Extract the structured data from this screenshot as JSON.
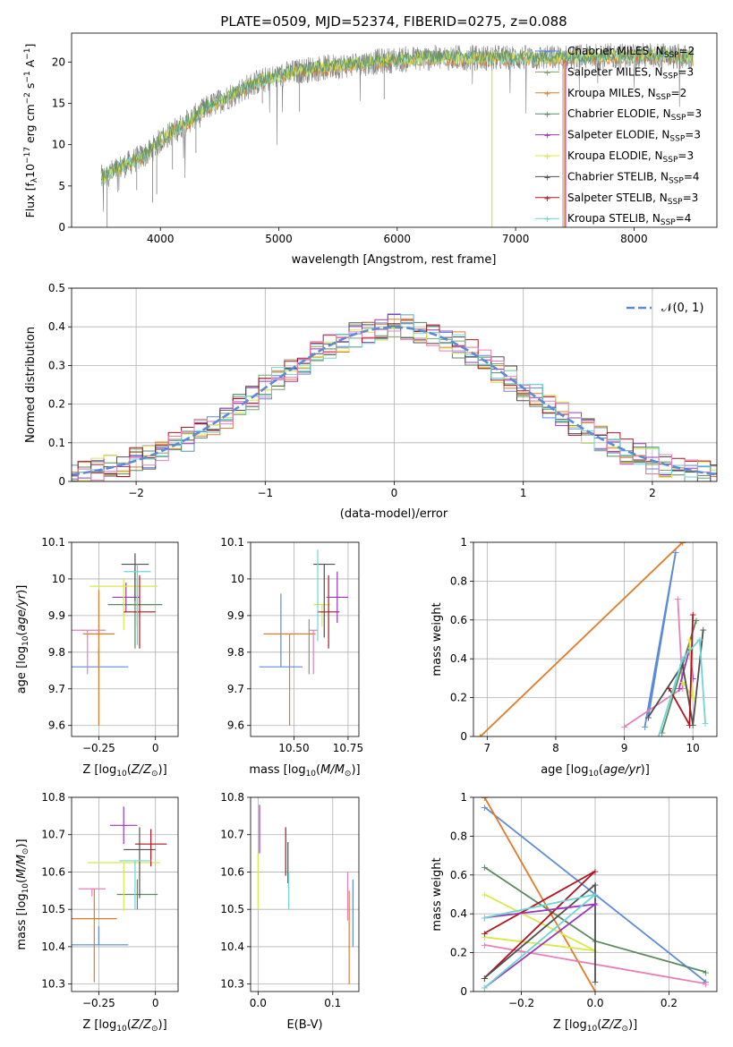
{
  "colors": {
    "cm": "#5b8bd8",
    "sm": "#7fa06f",
    "km": "#e07b28",
    "ce": "#5a8a5e",
    "se": "#9b36b8",
    "ke": "#d8e848",
    "cs": "#505050",
    "ss": "#b0141f",
    "ks": "#6cd6d6",
    "pink": "#e87fb8",
    "gray": "#808080"
  },
  "chart_data": [
    {
      "id": "spectrum",
      "type": "line",
      "title": "PLATE=0509, MJD=52374, FIBERID=0275, z=0.088",
      "xlabel": "wavelength [Angstrom, rest frame]",
      "ylabel_parts": [
        "Flux [f",
        "λ",
        "10",
        "−17",
        " erg cm",
        "−2",
        " s",
        "−1",
        " A",
        "−1",
        "]"
      ],
      "xlim": [
        3250,
        8700
      ],
      "ylim": [
        0,
        23.5
      ],
      "xticks": [
        4000,
        5000,
        6000,
        7000,
        8000
      ],
      "yticks": [
        0,
        5,
        10,
        15,
        20
      ],
      "legend": "top-right",
      "legend_entries": [
        {
          "label": "Chabrier MILES, N",
          "sub": "SSP",
          "tail": "=2",
          "color": "cm"
        },
        {
          "label": "Salpeter MILES, N",
          "sub": "SSP",
          "tail": "=3",
          "color": "sm"
        },
        {
          "label": "Kroupa MILES, N",
          "sub": "SSP",
          "tail": "=2",
          "color": "km"
        },
        {
          "label": "Chabrier ELODIE, N",
          "sub": "SSP",
          "tail": "=3",
          "color": "ce"
        },
        {
          "label": "Salpeter ELODIE, N",
          "sub": "SSP",
          "tail": "=3",
          "color": "se"
        },
        {
          "label": "Kroupa ELODIE, N",
          "sub": "SSP",
          "tail": "=3",
          "color": "ke"
        },
        {
          "label": "Chabrier STELIB, N",
          "sub": "SSP",
          "tail": "=4",
          "color": "cs"
        },
        {
          "label": "Salpeter STELIB, N",
          "sub": "SSP",
          "tail": "=3",
          "color": "ss"
        },
        {
          "label": "Kroupa STELIB, N",
          "sub": "SSP",
          "tail": "=4",
          "color": "ks"
        }
      ],
      "continuum": [
        [
          3500,
          6
        ],
        [
          3700,
          7.5
        ],
        [
          3900,
          9
        ],
        [
          4000,
          10.5
        ],
        [
          4200,
          12.5
        ],
        [
          4400,
          14.5
        ],
        [
          4600,
          16
        ],
        [
          4800,
          17.5
        ],
        [
          5000,
          18.3
        ],
        [
          5200,
          19
        ],
        [
          5500,
          19.5
        ],
        [
          5800,
          20
        ],
        [
          6000,
          20.3
        ],
        [
          6300,
          20.5
        ],
        [
          6600,
          20.5
        ],
        [
          7000,
          20.5
        ],
        [
          7400,
          20.5
        ],
        [
          7800,
          20.7
        ],
        [
          8200,
          20.8
        ],
        [
          8500,
          20.5
        ]
      ],
      "absorption": [
        [
          3550,
          0
        ],
        [
          3800,
          4.5
        ],
        [
          3934,
          3
        ],
        [
          3969,
          4
        ],
        [
          4102,
          7
        ],
        [
          4300,
          9
        ],
        [
          4861,
          15
        ],
        [
          5175,
          14
        ],
        [
          5890,
          15.5
        ],
        [
          6800,
          0
        ],
        [
          6563,
          19
        ],
        [
          7400,
          0
        ]
      ],
      "spectrum_range": [
        3500,
        8500
      ]
    },
    {
      "id": "residuals",
      "type": "step",
      "xlabel": "(data-model)/error",
      "ylabel": "Normed distribution",
      "xlim": [
        -2.5,
        2.5
      ],
      "ylim": [
        0,
        0.5
      ],
      "xticks": [
        -2,
        -1,
        0,
        1,
        2
      ],
      "yticks": [
        0.0,
        0.1,
        0.2,
        0.3,
        0.4,
        0.5
      ],
      "grid": true,
      "legend": "top-right",
      "legend_label": "𝒩(0, 1)",
      "legend_color": "cm",
      "bin_width": 0.1
    },
    {
      "id": "age_vs_Z",
      "type": "errorbar",
      "xlabel_parts": [
        "Z [log",
        "10",
        "(",
        "Z/Z",
        "⊙",
        ")]"
      ],
      "ylabel_parts": [
        "age  [log",
        "10",
        "(",
        "age/yr",
        ")]"
      ],
      "xlim": [
        -0.37,
        0.1
      ],
      "ylim": [
        9.57,
        10.1
      ],
      "xticks": [
        -0.25,
        0.0
      ],
      "yticks": [
        9.6,
        9.7,
        9.8,
        9.9,
        10.0,
        10.1
      ],
      "grid": true,
      "points": [
        {
          "x": -0.25,
          "xerr": 0.13,
          "y": 9.76,
          "yerr_lo": 0.0,
          "yerr_hi": 0.05,
          "color": "cm"
        },
        {
          "x": -0.08,
          "xerr": 0.07,
          "y": 9.93,
          "yerr_lo": 0.06,
          "yerr_hi": 0.07,
          "color": "sm"
        },
        {
          "x": -0.25,
          "xerr": 0.07,
          "y": 9.85,
          "yerr_lo": 0.25,
          "yerr_hi": 0.12,
          "color": "km"
        },
        {
          "x": -0.09,
          "xerr": 0.12,
          "y": 9.93,
          "yerr_lo": 0.12,
          "yerr_hi": 0.1,
          "color": "ce"
        },
        {
          "x": -0.13,
          "xerr": 0.06,
          "y": 9.95,
          "yerr_lo": 0.04,
          "yerr_hi": 0.04,
          "color": "se"
        },
        {
          "x": -0.14,
          "xerr": 0.15,
          "y": 9.98,
          "yerr_lo": 0.12,
          "yerr_hi": 0.02,
          "color": "ke"
        },
        {
          "x": -0.09,
          "xerr": 0.06,
          "y": 10.04,
          "yerr_lo": 0.1,
          "yerr_hi": 0.03,
          "color": "cs"
        },
        {
          "x": -0.07,
          "xerr": 0.07,
          "y": 9.91,
          "yerr_lo": 0.1,
          "yerr_hi": 0.1,
          "color": "ss"
        },
        {
          "x": -0.08,
          "xerr": 0.06,
          "y": 10.02,
          "yerr_lo": 0.2,
          "yerr_hi": 0.02,
          "color": "ks"
        },
        {
          "x": -0.3,
          "xerr": 0.08,
          "y": 9.86,
          "yerr_lo": 0.12,
          "yerr_hi": 0.0,
          "color": "pink"
        }
      ]
    },
    {
      "id": "age_vs_mass",
      "type": "errorbar",
      "xlabel_parts": [
        "mass [log",
        "10",
        "(",
        "M/M",
        "⊙",
        ")]"
      ],
      "xlim": [
        10.3,
        10.8
      ],
      "ylim": [
        9.57,
        10.1
      ],
      "xticks": [
        10.5,
        10.75
      ],
      "xticklabels": [
        "10.50",
        "10.75"
      ],
      "yticks": [
        9.6,
        9.7,
        9.8,
        9.9,
        10.0,
        10.1
      ],
      "grid": true,
      "points": [
        {
          "x": 10.44,
          "xerr": 0.1,
          "y": 9.76,
          "yerr_lo": 0.0,
          "yerr_hi": 0.2,
          "color": "cm"
        },
        {
          "x": 10.48,
          "xerr": 0.12,
          "y": 9.85,
          "yerr_lo": 0.25,
          "yerr_hi": 0.0,
          "color": "km"
        },
        {
          "x": 10.59,
          "xerr": 0.02,
          "y": 9.86,
          "yerr_lo": 0.12,
          "yerr_hi": 0.0,
          "color": "pink"
        },
        {
          "x": 10.63,
          "xerr": 0.04,
          "y": 9.93,
          "yerr_lo": 0.06,
          "yerr_hi": 0.0,
          "color": "ke"
        },
        {
          "x": 10.64,
          "xerr": 0.05,
          "y": 10.04,
          "yerr_lo": 0.2,
          "yerr_hi": 0.0,
          "color": "cs"
        },
        {
          "x": 10.66,
          "xerr": 0.05,
          "y": 9.91,
          "yerr_lo": 0.1,
          "yerr_hi": 0.1,
          "color": "ss"
        },
        {
          "x": 10.7,
          "xerr": 0.05,
          "y": 9.95,
          "yerr_lo": 0.07,
          "yerr_hi": 0.07,
          "color": "se"
        },
        {
          "x": 10.61,
          "xerr": 0.0,
          "y": 9.98,
          "yerr_lo": 0.15,
          "yerr_hi": 0.1,
          "color": "ks"
        },
        {
          "x": 10.57,
          "xerr": 0.0,
          "y": 9.84,
          "yerr_lo": 0.1,
          "yerr_hi": 0.05,
          "color": "sm"
        }
      ]
    },
    {
      "id": "weight_vs_age",
      "type": "line",
      "xlabel_parts": [
        "age  [log",
        "10",
        "(",
        "age/yr",
        ")]"
      ],
      "ylabel": "mass weight",
      "xlim": [
        6.8,
        10.35
      ],
      "ylim": [
        0,
        1.0
      ],
      "xticks": [
        7,
        8,
        9,
        10
      ],
      "yticks": [
        0.0,
        0.2,
        0.4,
        0.6,
        0.8,
        1.0
      ],
      "grid": true,
      "series": [
        {
          "color": "km",
          "x": [
            6.9,
            9.85
          ],
          "y": [
            0.0,
            1.0
          ]
        },
        {
          "color": "cm",
          "x": [
            9.3,
            9.75,
            9.35
          ],
          "y": [
            0.05,
            0.95,
            0.1
          ]
        },
        {
          "color": "pink",
          "x": [
            9.0,
            9.85,
            9.78
          ],
          "y": [
            0.05,
            0.25,
            0.71
          ]
        },
        {
          "color": "ce",
          "x": [
            9.55,
            9.85,
            10.05
          ],
          "y": [
            0.02,
            0.37,
            0.6
          ]
        },
        {
          "color": "se",
          "x": [
            9.8,
            9.95,
            10.0
          ],
          "y": [
            0.25,
            0.45,
            0.3
          ]
        },
        {
          "color": "ke",
          "x": [
            9.95,
            10.0,
            9.85
          ],
          "y": [
            0.5,
            0.2,
            0.28
          ]
        },
        {
          "color": "cs",
          "x": [
            9.35,
            9.85,
            10.0,
            10.15
          ],
          "y": [
            0.1,
            0.37,
            0.06,
            0.55
          ]
        },
        {
          "color": "ss",
          "x": [
            9.65,
            9.95,
            10.0
          ],
          "y": [
            0.25,
            0.06,
            0.63
          ]
        },
        {
          "color": "ks",
          "x": [
            9.5,
            9.85,
            10.1,
            10.18
          ],
          "y": [
            0.0,
            0.4,
            0.5,
            0.07
          ]
        }
      ]
    },
    {
      "id": "mass_vs_Z",
      "type": "errorbar",
      "xlabel_parts": [
        "Z [log",
        "10",
        "(",
        "Z/Z",
        "⊙",
        ")]"
      ],
      "ylabel_parts": [
        "mass [log",
        "10",
        "(",
        "M/M",
        "⊙",
        ")]"
      ],
      "xlim": [
        -0.37,
        0.1
      ],
      "ylim": [
        10.28,
        10.8
      ],
      "xticks": [
        -0.25,
        0.0
      ],
      "yticks": [
        10.3,
        10.4,
        10.5,
        10.6,
        10.7,
        10.8
      ],
      "grid": true,
      "points": [
        {
          "x": -0.25,
          "xerr": 0.13,
          "y": 10.405,
          "yerr_lo": 0.0,
          "yerr_hi": 0.05,
          "color": "cm"
        },
        {
          "x": -0.27,
          "xerr": 0.1,
          "y": 10.475,
          "yerr_lo": 0.17,
          "yerr_hi": 0.08,
          "color": "km"
        },
        {
          "x": -0.08,
          "xerr": 0.09,
          "y": 10.54,
          "yerr_lo": 0.04,
          "yerr_hi": 0.04,
          "color": "ce"
        },
        {
          "x": -0.28,
          "xerr": 0.06,
          "y": 10.555,
          "yerr_lo": 0.02,
          "yerr_hi": 0.0,
          "color": "pink"
        },
        {
          "x": -0.14,
          "xerr": 0.16,
          "y": 10.625,
          "yerr_lo": 0.13,
          "yerr_hi": 0.0,
          "color": "ke"
        },
        {
          "x": -0.07,
          "xerr": 0.07,
          "y": 10.66,
          "yerr_lo": 0.13,
          "yerr_hi": 0.06,
          "color": "cs"
        },
        {
          "x": -0.02,
          "xerr": 0.07,
          "y": 10.675,
          "yerr_lo": 0.06,
          "yerr_hi": 0.04,
          "color": "ss"
        },
        {
          "x": -0.14,
          "xerr": 0.06,
          "y": 10.725,
          "yerr_lo": 0.05,
          "yerr_hi": 0.05,
          "color": "se"
        },
        {
          "x": -0.09,
          "xerr": 0.07,
          "y": 10.63,
          "yerr_lo": 0.13,
          "yerr_hi": 0.0,
          "color": "ks"
        }
      ]
    },
    {
      "id": "mass_vs_ebv",
      "type": "errorbar",
      "xlabel": "E(B-V)",
      "xlim": [
        -0.01,
        0.135
      ],
      "ylim": [
        10.28,
        10.8
      ],
      "xticks": [
        0.0,
        0.1
      ],
      "xticklabels": [
        "0.0",
        "0.1"
      ],
      "yticks": [
        10.3,
        10.4,
        10.5,
        10.6,
        10.7,
        10.8
      ],
      "grid": true,
      "points": [
        {
          "x": 0.0,
          "xerr": 0.0,
          "y": 10.6,
          "yerr_lo": 0.1,
          "yerr_hi": 0.05,
          "color": "ke"
        },
        {
          "x": 0.002,
          "xerr": 0.0,
          "y": 10.72,
          "yerr_lo": 0.07,
          "yerr_hi": 0.06,
          "color": "se"
        },
        {
          "x": 0.037,
          "xerr": 0.0,
          "y": 10.65,
          "yerr_lo": 0.06,
          "yerr_hi": 0.07,
          "color": "ss"
        },
        {
          "x": 0.04,
          "xerr": 0.0,
          "y": 10.62,
          "yerr_lo": 0.05,
          "yerr_hi": 0.06,
          "color": "cs"
        },
        {
          "x": 0.041,
          "xerr": 0.0,
          "y": 10.55,
          "yerr_lo": 0.05,
          "yerr_hi": 0.05,
          "color": "ks"
        },
        {
          "x": 0.12,
          "xerr": 0.0,
          "y": 10.53,
          "yerr_lo": 0.06,
          "yerr_hi": 0.07,
          "color": "pink"
        },
        {
          "x": 0.122,
          "xerr": 0.0,
          "y": 10.45,
          "yerr_lo": 0.15,
          "yerr_hi": 0.1,
          "color": "km"
        },
        {
          "x": 0.127,
          "xerr": 0.0,
          "y": 10.5,
          "yerr_lo": 0.1,
          "yerr_hi": 0.08,
          "color": "cm"
        }
      ]
    },
    {
      "id": "weight_vs_Z",
      "type": "line",
      "xlabel_parts": [
        "Z [log",
        "10",
        "(",
        "Z/Z",
        "⊙",
        ")]"
      ],
      "ylabel": "mass weight",
      "xlim": [
        -0.33,
        0.33
      ],
      "ylim": [
        0,
        1.0
      ],
      "xticks": [
        -0.2,
        0.0,
        0.2
      ],
      "xticklabels": [
        "−0.2",
        "0.0",
        "0.2"
      ],
      "yticks": [
        0.0,
        0.2,
        0.4,
        0.6,
        0.8,
        1.0
      ],
      "grid": true,
      "series": [
        {
          "color": "cm",
          "x": [
            -0.3,
            0.3
          ],
          "y": [
            0.95,
            0.05
          ]
        },
        {
          "color": "km",
          "x": [
            -0.3,
            0.0
          ],
          "y": [
            1.0,
            0.0
          ]
        },
        {
          "color": "ce",
          "x": [
            -0.3,
            0.0,
            0.3
          ],
          "y": [
            0.64,
            0.26,
            0.1
          ]
        },
        {
          "color": "pink",
          "x": [
            -0.3,
            0.3
          ],
          "y": [
            0.24,
            0.04
          ]
        },
        {
          "color": "ke",
          "x": [
            -0.3,
            0.0,
            -0.3
          ],
          "y": [
            0.28,
            0.21,
            0.5
          ]
        },
        {
          "color": "ss",
          "x": [
            -0.3,
            0.0,
            -0.3
          ],
          "y": [
            0.07,
            0.62,
            0.3
          ]
        },
        {
          "color": "cs",
          "x": [
            -0.3,
            0.0,
            0.0
          ],
          "y": [
            0.07,
            0.55,
            0.05
          ]
        },
        {
          "color": "se",
          "x": [
            -0.3,
            0.0,
            -0.3
          ],
          "y": [
            0.02,
            0.45,
            0.38
          ]
        },
        {
          "color": "ks",
          "x": [
            -0.3,
            0.0,
            -0.3
          ],
          "y": [
            0.02,
            0.5,
            0.38
          ]
        }
      ]
    }
  ]
}
